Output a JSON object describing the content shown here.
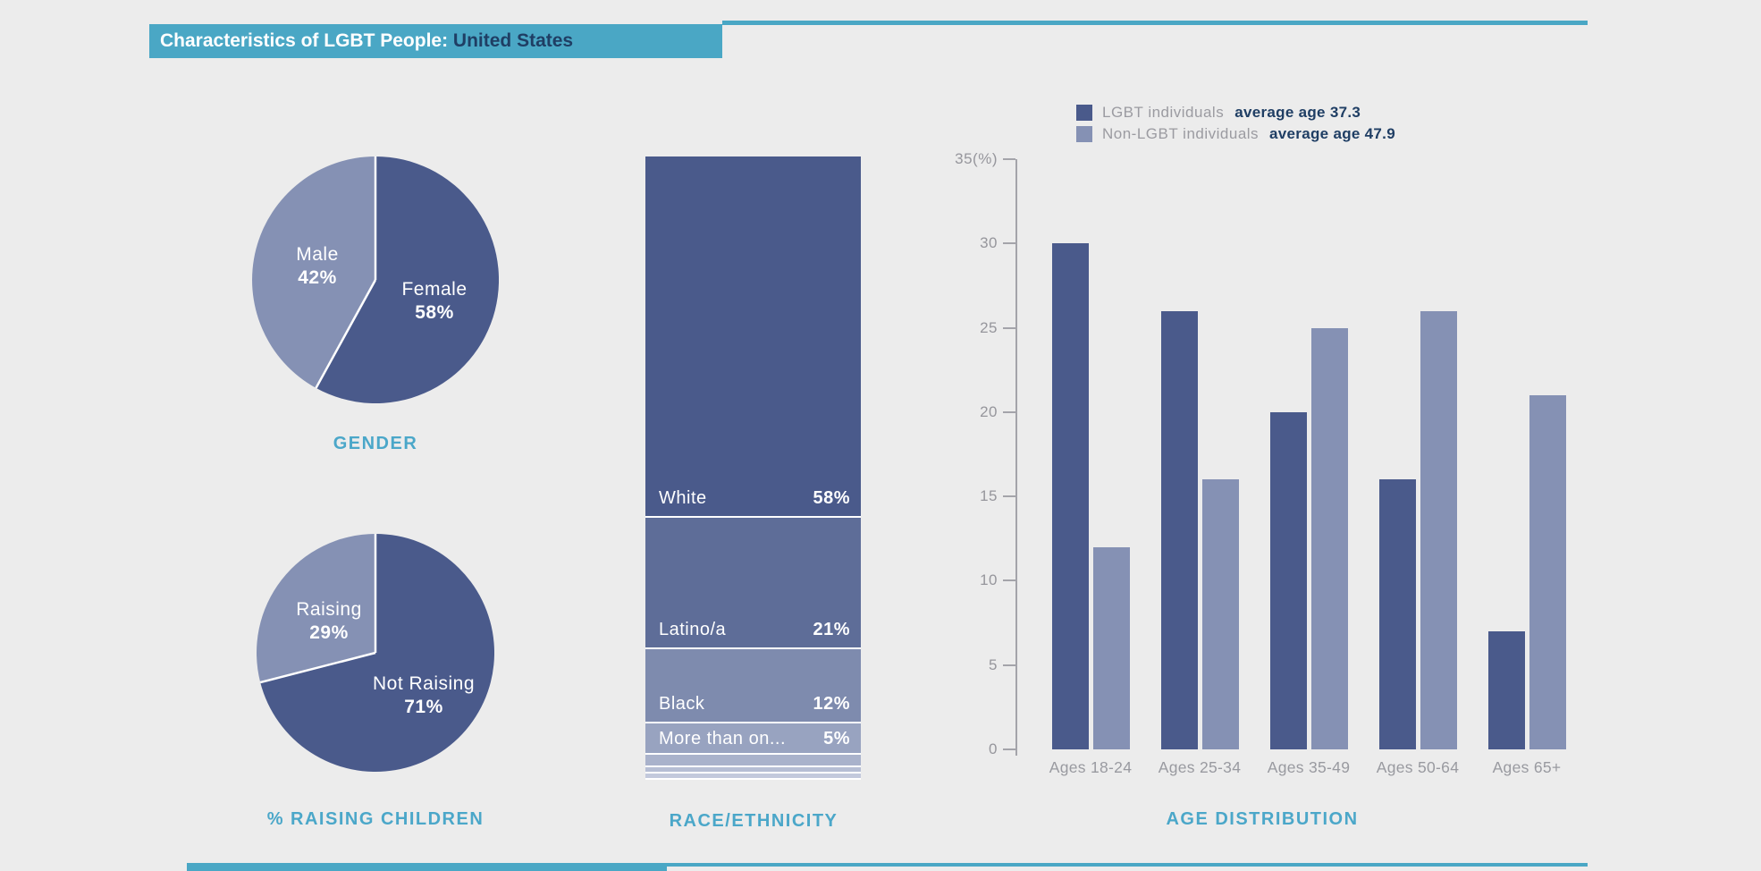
{
  "title": {
    "prefix": "Characteristics of LGBT People: ",
    "region": "United States"
  },
  "colors": {
    "accent_teal": "#4AA7C5",
    "heading_teal": "#4BA7C9",
    "dark_series": "#4A5A8B",
    "light_series": "#8591B4",
    "navy_text": "#1F3E64",
    "gray_text": "#9B9BA1",
    "background": "#ECECEC"
  },
  "chart_data": [
    {
      "type": "pie",
      "name": "gender",
      "title": "GENDER",
      "slices": [
        {
          "label": "Female",
          "value": 58,
          "display": "58%",
          "color": "#4A5A8B"
        },
        {
          "label": "Male",
          "value": 42,
          "display": "42%",
          "color": "#8591B4"
        }
      ]
    },
    {
      "type": "pie",
      "name": "raising-children",
      "title": "% RAISING CHILDREN",
      "slices": [
        {
          "label": "Not Raising",
          "value": 71,
          "display": "71%",
          "color": "#4A5A8B"
        },
        {
          "label": "Raising",
          "value": 29,
          "display": "29%",
          "color": "#8591B4"
        }
      ]
    },
    {
      "type": "stacked-bar",
      "name": "race-ethnicity",
      "title": "RACE/ETHNICITY",
      "segments": [
        {
          "label": "White",
          "value": 58,
          "display": "58%",
          "color": "#4A5A8B"
        },
        {
          "label": "Latino/a",
          "value": 21,
          "display": "21%",
          "color": "#5E6D98"
        },
        {
          "label": "Black",
          "value": 12,
          "display": "12%",
          "color": "#7E8BAE"
        },
        {
          "label": "More than on...",
          "value": 5,
          "display": "5%",
          "color": "#98A3C0"
        },
        {
          "label": "",
          "value": 2,
          "display": "",
          "color": "#A9B2CB"
        },
        {
          "label": "",
          "value": 1,
          "display": "",
          "color": "#B6BED4"
        },
        {
          "label": "",
          "value": 1,
          "display": "",
          "color": "#C3C9DC"
        }
      ]
    },
    {
      "type": "bar",
      "name": "age-distribution",
      "title": "AGE DISTRIBUTION",
      "categories": [
        "Ages 18-24",
        "Ages 25-34",
        "Ages 35-49",
        "Ages 50-64",
        "Ages 65+"
      ],
      "series": [
        {
          "name": "LGBT individuals",
          "note": "average age 37.3",
          "color": "#4A5A8B",
          "values": [
            30,
            26,
            20,
            16,
            7
          ]
        },
        {
          "name": "Non-LGBT individuals",
          "note": "average age 47.9",
          "color": "#8591B4",
          "values": [
            12,
            16,
            25,
            26,
            21
          ]
        }
      ],
      "ymax": 35,
      "yticks": [
        {
          "v": 0,
          "label": "0"
        },
        {
          "v": 5,
          "label": "5"
        },
        {
          "v": 10,
          "label": "10"
        },
        {
          "v": 15,
          "label": "15"
        },
        {
          "v": 20,
          "label": "20"
        },
        {
          "v": 25,
          "label": "25"
        },
        {
          "v": 30,
          "label": "30"
        },
        {
          "v": 35,
          "label": "35(%)"
        }
      ],
      "grid": false,
      "legend_position": "top"
    }
  ]
}
